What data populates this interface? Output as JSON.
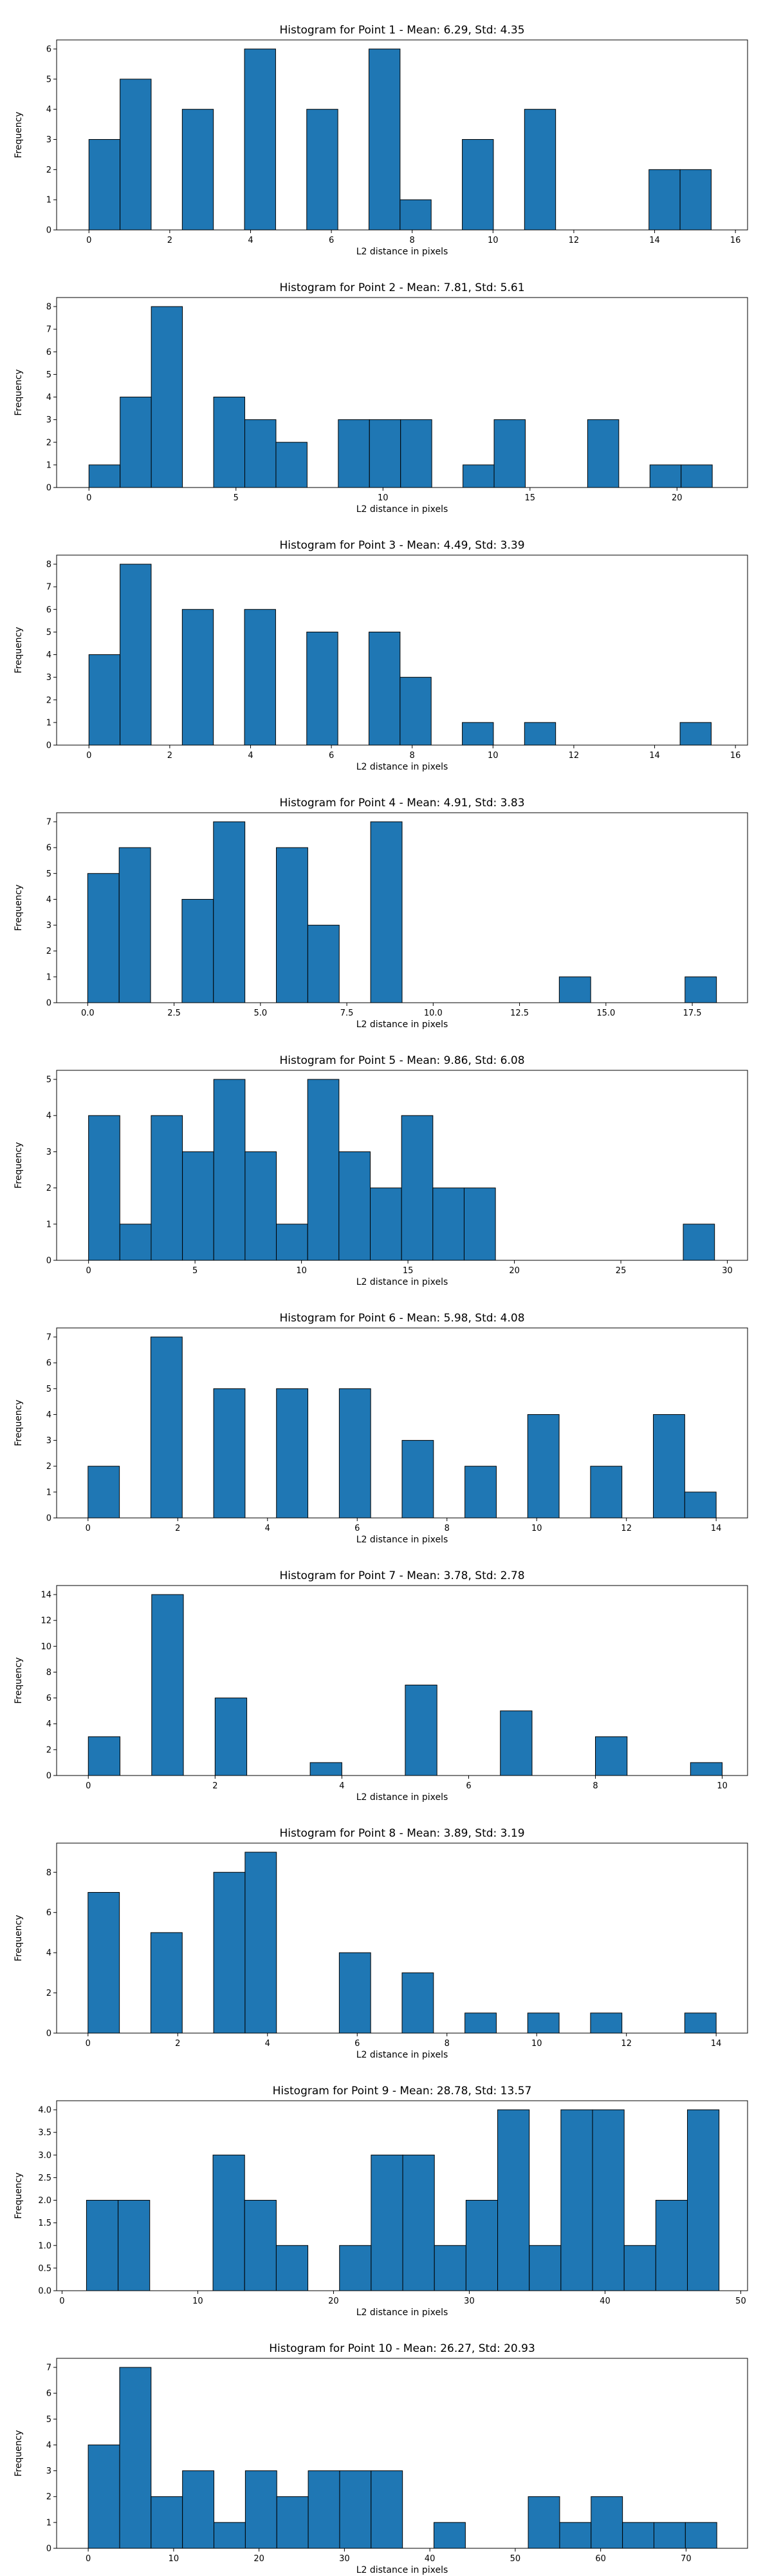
{
  "colors": {
    "bar_fill": "#1f77b4",
    "bar_edge": "#000000",
    "axes": "#000000",
    "background": "#ffffff"
  },
  "chart_data": [
    {
      "type": "bar",
      "title": "Histogram for Point 1 - Mean: 6.29, Std: 4.35",
      "xlabel": "L2 distance in pixels",
      "ylabel": "Frequency",
      "xlim": [
        -0.8,
        16.3
      ],
      "ylim": [
        0,
        6.3
      ],
      "xticks": [
        0,
        2,
        4,
        6,
        8,
        10,
        12,
        14,
        16
      ],
      "xtick_labels": [
        "0",
        "2",
        "4",
        "6",
        "8",
        "10",
        "12",
        "14",
        "16"
      ],
      "yticks": [
        0,
        1,
        2,
        3,
        4,
        5,
        6
      ],
      "ytick_labels": [
        "0",
        "1",
        "2",
        "3",
        "4",
        "5",
        "6"
      ],
      "grid": false,
      "bin_edges": [
        0,
        0.77,
        1.54,
        2.31,
        3.08,
        3.85,
        4.62,
        5.39,
        6.16,
        6.93,
        7.7,
        8.47,
        9.24,
        10.01,
        10.78,
        11.55,
        12.32,
        13.09,
        13.86,
        14.63,
        15.4
      ],
      "values": [
        3,
        5,
        0,
        4,
        0,
        6,
        0,
        4,
        0,
        6,
        1,
        0,
        3,
        0,
        4,
        0,
        0,
        0,
        2,
        2
      ]
    },
    {
      "type": "bar",
      "title": "Histogram for Point 2 - Mean: 7.81, Std: 5.61",
      "xlabel": "L2 distance in pixels",
      "ylabel": "Frequency",
      "xlim": [
        -1.1,
        22.4
      ],
      "ylim": [
        0,
        8.4
      ],
      "xticks": [
        0,
        5,
        10,
        15,
        20
      ],
      "xtick_labels": [
        "0",
        "5",
        "10",
        "15",
        "20"
      ],
      "yticks": [
        0,
        1,
        2,
        3,
        4,
        5,
        6,
        7,
        8
      ],
      "ytick_labels": [
        "0",
        "1",
        "2",
        "3",
        "4",
        "5",
        "6",
        "7",
        "8"
      ],
      "grid": false,
      "bin_edges": [
        0,
        1.06,
        2.12,
        3.18,
        4.24,
        5.3,
        6.36,
        7.42,
        8.48,
        9.54,
        10.6,
        11.66,
        12.72,
        13.78,
        14.84,
        15.9,
        16.96,
        18.02,
        19.08,
        20.14,
        21.2
      ],
      "values": [
        1,
        4,
        8,
        0,
        4,
        3,
        2,
        0,
        3,
        3,
        3,
        0,
        1,
        3,
        0,
        0,
        3,
        0,
        1,
        1
      ]
    },
    {
      "type": "bar",
      "title": "Histogram for Point 3 - Mean: 4.49, Std: 3.39",
      "xlabel": "L2 distance in pixels",
      "ylabel": "Frequency",
      "xlim": [
        -0.8,
        16.3
      ],
      "ylim": [
        0,
        8.4
      ],
      "xticks": [
        0,
        2,
        4,
        6,
        8,
        10,
        12,
        14,
        16
      ],
      "xtick_labels": [
        "0",
        "2",
        "4",
        "6",
        "8",
        "10",
        "12",
        "14",
        "16"
      ],
      "yticks": [
        0,
        1,
        2,
        3,
        4,
        5,
        6,
        7,
        8
      ],
      "ytick_labels": [
        "0",
        "1",
        "2",
        "3",
        "4",
        "5",
        "6",
        "7",
        "8"
      ],
      "grid": false,
      "bin_edges": [
        0,
        0.77,
        1.54,
        2.31,
        3.08,
        3.85,
        4.62,
        5.39,
        6.16,
        6.93,
        7.7,
        8.47,
        9.24,
        10.01,
        10.78,
        11.55,
        12.32,
        13.09,
        13.86,
        14.63,
        15.4
      ],
      "values": [
        4,
        8,
        0,
        6,
        0,
        6,
        0,
        5,
        0,
        5,
        3,
        0,
        1,
        0,
        1,
        0,
        0,
        0,
        0,
        1
      ]
    },
    {
      "type": "bar",
      "title": "Histogram for Point 4 - Mean: 4.91, Std: 3.83",
      "xlabel": "L2 distance in pixels",
      "ylabel": "Frequency",
      "xlim": [
        -0.9,
        19.1
      ],
      "ylim": [
        0,
        7.35
      ],
      "xticks": [
        0,
        2.5,
        5,
        7.5,
        10,
        12.5,
        15,
        17.5
      ],
      "xtick_labels": [
        "0.0",
        "2.5",
        "5.0",
        "7.5",
        "10.0",
        "12.5",
        "15.0",
        "17.5"
      ],
      "yticks": [
        0,
        1,
        2,
        3,
        4,
        5,
        6,
        7
      ],
      "ytick_labels": [
        "0",
        "1",
        "2",
        "3",
        "4",
        "5",
        "6",
        "7"
      ],
      "grid": false,
      "bin_edges": [
        0,
        0.91,
        1.82,
        2.73,
        3.64,
        4.55,
        5.46,
        6.37,
        7.28,
        8.19,
        9.1,
        10.01,
        10.92,
        11.83,
        12.74,
        13.65,
        14.56,
        15.47,
        16.38,
        17.29,
        18.2
      ],
      "values": [
        5,
        6,
        0,
        4,
        7,
        0,
        6,
        3,
        0,
        7,
        0,
        0,
        0,
        0,
        0,
        1,
        0,
        0,
        0,
        1
      ]
    },
    {
      "type": "bar",
      "title": "Histogram for Point 5 - Mean: 9.86, Std: 6.08",
      "xlabel": "L2 distance in pixels",
      "ylabel": "Frequency",
      "xlim": [
        -1.5,
        30.95
      ],
      "ylim": [
        0,
        5.25
      ],
      "xticks": [
        0,
        5,
        10,
        15,
        20,
        25,
        30
      ],
      "xtick_labels": [
        "0",
        "5",
        "10",
        "15",
        "20",
        "25",
        "30"
      ],
      "yticks": [
        0,
        1,
        2,
        3,
        4,
        5
      ],
      "ytick_labels": [
        "0",
        "1",
        "2",
        "3",
        "4",
        "5"
      ],
      "grid": false,
      "bin_edges": [
        0,
        1.47,
        2.94,
        4.41,
        5.88,
        7.35,
        8.82,
        10.29,
        11.76,
        13.23,
        14.7,
        16.17,
        17.64,
        19.11,
        20.58,
        22.05,
        23.52,
        24.99,
        26.46,
        27.93,
        29.4
      ],
      "values": [
        4,
        1,
        4,
        3,
        5,
        3,
        1,
        5,
        3,
        2,
        4,
        2,
        2,
        0,
        0,
        0,
        0,
        0,
        0,
        1
      ]
    },
    {
      "type": "bar",
      "title": "Histogram for Point 6 - Mean: 5.98, Std: 4.08",
      "xlabel": "L2 distance in pixels",
      "ylabel": "Frequency",
      "xlim": [
        -0.7,
        14.7
      ],
      "ylim": [
        0,
        7.35
      ],
      "xticks": [
        0,
        2,
        4,
        6,
        8,
        10,
        12,
        14
      ],
      "xtick_labels": [
        "0",
        "2",
        "4",
        "6",
        "8",
        "10",
        "12",
        "14"
      ],
      "yticks": [
        0,
        1,
        2,
        3,
        4,
        5,
        6,
        7
      ],
      "ytick_labels": [
        "0",
        "1",
        "2",
        "3",
        "4",
        "5",
        "6",
        "7"
      ],
      "grid": false,
      "bin_edges": [
        0,
        0.7,
        1.4,
        2.1,
        2.8,
        3.5,
        4.2,
        4.9,
        5.6,
        6.3,
        7,
        7.7,
        8.4,
        9.1,
        9.8,
        10.5,
        11.2,
        11.9,
        12.6,
        13.3,
        14
      ],
      "values": [
        2,
        0,
        7,
        0,
        5,
        0,
        5,
        0,
        5,
        0,
        3,
        0,
        2,
        0,
        4,
        0,
        2,
        0,
        4,
        1
      ]
    },
    {
      "type": "bar",
      "title": "Histogram for Point 7 - Mean: 3.78, Std: 2.78",
      "xlabel": "L2 distance in pixels",
      "ylabel": "Frequency",
      "xlim": [
        -0.5,
        10.4
      ],
      "ylim": [
        0,
        14.7
      ],
      "xticks": [
        0,
        2,
        4,
        6,
        8,
        10
      ],
      "xtick_labels": [
        "0",
        "2",
        "4",
        "6",
        "8",
        "10"
      ],
      "yticks": [
        0,
        2,
        4,
        6,
        8,
        10,
        12,
        14
      ],
      "ytick_labels": [
        "0",
        "2",
        "4",
        "6",
        "8",
        "10",
        "12",
        "14"
      ],
      "grid": false,
      "bin_edges": [
        0,
        0.5,
        1,
        1.5,
        2,
        2.5,
        3,
        3.5,
        4,
        4.5,
        5,
        5.5,
        6,
        6.5,
        7,
        7.5,
        8,
        8.5,
        9,
        9.5,
        10
      ],
      "values": [
        3,
        0,
        14,
        0,
        6,
        0,
        0,
        1,
        0,
        0,
        7,
        0,
        0,
        5,
        0,
        0,
        3,
        0,
        0,
        1
      ]
    },
    {
      "type": "bar",
      "title": "Histogram for Point 8 - Mean: 3.89, Std: 3.19",
      "xlabel": "L2 distance in pixels",
      "ylabel": "Frequency",
      "xlim": [
        -0.7,
        14.7
      ],
      "ylim": [
        0,
        9.45
      ],
      "xticks": [
        0,
        2,
        4,
        6,
        8,
        10,
        12,
        14
      ],
      "xtick_labels": [
        "0",
        "2",
        "4",
        "6",
        "8",
        "10",
        "12",
        "14"
      ],
      "yticks": [
        0,
        2,
        4,
        6,
        8
      ],
      "ytick_labels": [
        "0",
        "2",
        "4",
        "6",
        "8"
      ],
      "grid": false,
      "bin_edges": [
        0,
        0.7,
        1.4,
        2.1,
        2.8,
        3.5,
        4.2,
        4.9,
        5.6,
        6.3,
        7,
        7.7,
        8.4,
        9.1,
        9.8,
        10.5,
        11.2,
        11.9,
        12.6,
        13.3,
        14
      ],
      "values": [
        7,
        0,
        5,
        0,
        8,
        9,
        0,
        0,
        4,
        0,
        3,
        0,
        1,
        0,
        1,
        0,
        1,
        0,
        0,
        1
      ]
    },
    {
      "type": "bar",
      "title": "Histogram for Point 9 - Mean: 28.78, Std: 13.57",
      "xlabel": "L2 distance in pixels",
      "ylabel": "Frequency",
      "xlim": [
        -0.4,
        50.5
      ],
      "ylim": [
        0,
        4.2
      ],
      "xticks": [
        0,
        10,
        20,
        30,
        40,
        50
      ],
      "xtick_labels": [
        "0",
        "10",
        "20",
        "30",
        "40",
        "50"
      ],
      "yticks": [
        0,
        0.5,
        1,
        1.5,
        2,
        2.5,
        3,
        3.5,
        4
      ],
      "ytick_labels": [
        "0.0",
        "0.5",
        "1.0",
        "1.5",
        "2.0",
        "2.5",
        "3.0",
        "3.5",
        "4.0"
      ],
      "grid": false,
      "bin_edges": [
        1.8,
        4.13,
        6.46,
        8.79,
        11.12,
        13.45,
        15.78,
        18.11,
        20.44,
        22.77,
        25.1,
        27.43,
        29.76,
        32.09,
        34.42,
        36.75,
        39.08,
        41.41,
        43.74,
        46.07,
        48.4
      ],
      "values": [
        2,
        2,
        0,
        0,
        3,
        2,
        1,
        0,
        1,
        3,
        3,
        1,
        2,
        4,
        1,
        4,
        4,
        1,
        2,
        4
      ]
    },
    {
      "type": "bar",
      "title": "Histogram for Point 10 - Mean: 26.27, Std: 20.93",
      "xlabel": "L2 distance in pixels",
      "ylabel": "Frequency",
      "xlim": [
        -3.7,
        77.2
      ],
      "ylim": [
        0,
        7.35
      ],
      "xticks": [
        0,
        10,
        20,
        30,
        40,
        50,
        60,
        70
      ],
      "xtick_labels": [
        "0",
        "10",
        "20",
        "30",
        "40",
        "50",
        "60",
        "70"
      ],
      "yticks": [
        0,
        1,
        2,
        3,
        4,
        5,
        6,
        7
      ],
      "ytick_labels": [
        "0",
        "1",
        "2",
        "3",
        "4",
        "5",
        "6",
        "7"
      ],
      "grid": false,
      "bin_edges": [
        0,
        3.68,
        7.36,
        11.04,
        14.72,
        18.4,
        22.08,
        25.76,
        29.44,
        33.12,
        36.8,
        40.48,
        44.16,
        47.84,
        51.52,
        55.2,
        58.88,
        62.56,
        66.24,
        69.92,
        73.6
      ],
      "values": [
        4,
        7,
        2,
        3,
        1,
        3,
        2,
        3,
        3,
        3,
        0,
        1,
        0,
        0,
        2,
        1,
        2,
        1,
        1,
        1
      ]
    }
  ]
}
